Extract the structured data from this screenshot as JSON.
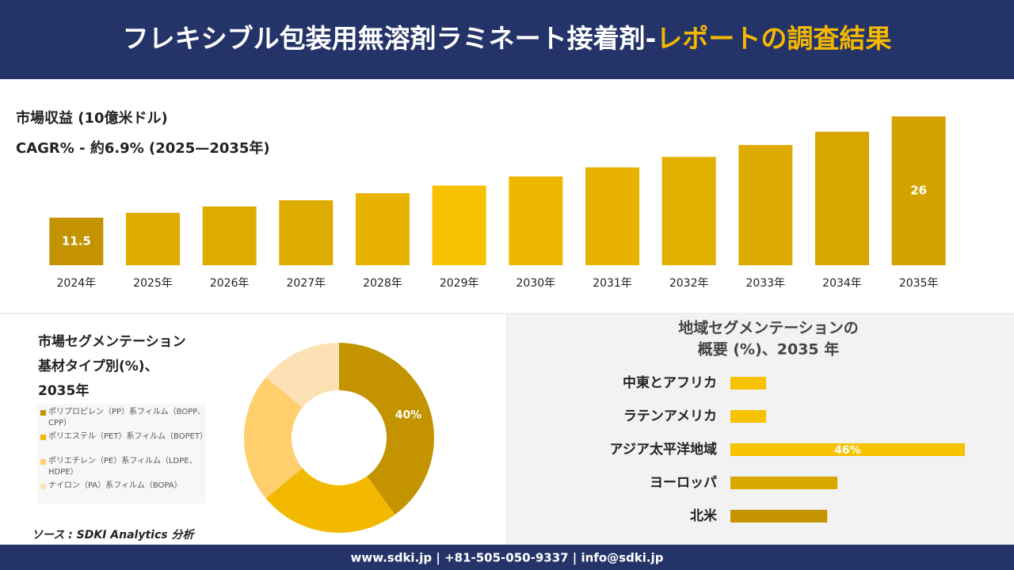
{
  "header": {
    "title": "フレキシブル包装用無溶剤ラミネート接着剤-",
    "title_highlight": "レポートの調査結果"
  },
  "chart_data": [
    {
      "type": "bar",
      "subtitle": "市場収益 (10億米ドル)",
      "annotation": "CAGR% - 約6.9% (2025—2035年)",
      "categories": [
        "2024年",
        "2025年",
        "2026年",
        "2027年",
        "2028年",
        "2029年",
        "2030年",
        "2031年",
        "2032年",
        "2033年",
        "2034年",
        "2035年"
      ],
      "values": [
        11.5,
        12.2,
        13.1,
        14.0,
        15.0,
        16.1,
        17.4,
        18.7,
        20.2,
        21.9,
        23.8,
        26
      ],
      "value_labels": [
        "11.5",
        null,
        null,
        null,
        null,
        null,
        null,
        null,
        null,
        null,
        null,
        "26"
      ],
      "colors": [
        "#c39300",
        "#deab00",
        "#deab00",
        "#deab00",
        "#e8b300",
        "#f7c200",
        "#eeb800",
        "#e8b300",
        "#e2ae00",
        "#dcaa00",
        "#d8a600",
        "#d4a300"
      ],
      "ylim": [
        4.7,
        26
      ]
    },
    {
      "type": "donut",
      "title": [
        "市場セグメンテーション",
        "基材タイプ別(%)、",
        "2035年"
      ],
      "categories": [
        "ポリプロピレン（PP）系フィルム（BOPP、CPP）",
        "ポリエステル（PET）系フィルム（BOPET）",
        "ポリエチレン（PE）系フィルム（LDPE、HDPE）",
        "ナイロン（PA）系フィルム（BOPA）"
      ],
      "values": [
        40,
        24,
        22,
        14
      ],
      "value_labels": [
        "40%",
        null,
        null,
        null
      ],
      "colors": [
        "#c39300",
        "#f2b900",
        "#ffcf6e",
        "#fde0b3"
      ]
    },
    {
      "type": "hbar",
      "title": [
        "地域セグメンテーションの",
        "概要 (%)、2035 年"
      ],
      "categories": [
        "中東とアフリカ",
        "ラテンアメリカ",
        "アジア太平洋地域",
        "ヨーロッパ",
        "北米"
      ],
      "values": [
        7,
        7,
        46,
        21,
        19
      ],
      "value_labels": [
        null,
        null,
        "46%",
        null,
        null
      ],
      "colors": [
        "#f7c200",
        "#f7c200",
        "#f7c200",
        "#d9a800",
        "#c39300"
      ],
      "xlim": [
        0,
        46
      ]
    }
  ],
  "source": "ソース : SDKI Analytics 分析",
  "footer": "www.sdki.jp | +81-505-050-9337 | info@sdki.jp"
}
